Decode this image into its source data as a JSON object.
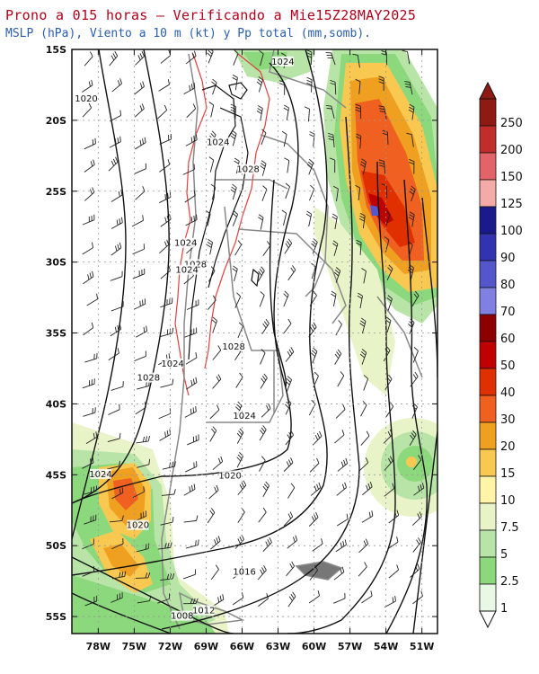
{
  "title": "Prono a 015 horas — Verificando a Mie15Z28MAY2025",
  "subtitle": "MSLP (hPa), Viento a 10 m (kt) y Pp total (mm,somb).",
  "lat_labels": [
    "15S",
    "20S",
    "25S",
    "30S",
    "35S",
    "40S",
    "45S",
    "50S",
    "55S"
  ],
  "lon_labels": [
    "78W",
    "75W",
    "72W",
    "69W",
    "66W",
    "63W",
    "60W",
    "57W",
    "54W",
    "51W"
  ],
  "isobar_labels": [
    {
      "text": "1024",
      "lon": -62.6,
      "lat": -16.0
    },
    {
      "text": "1020",
      "lon": -79.0,
      "lat": -18.6
    },
    {
      "text": "1024",
      "lon": -68.0,
      "lat": -21.7
    },
    {
      "text": "1028",
      "lon": -65.5,
      "lat": -23.6
    },
    {
      "text": "1024",
      "lon": -70.7,
      "lat": -28.8
    },
    {
      "text": "1028",
      "lon": -69.9,
      "lat": -30.3
    },
    {
      "text": "1024",
      "lon": -70.6,
      "lat": -30.7
    },
    {
      "text": "1028",
      "lon": -66.7,
      "lat": -36.1
    },
    {
      "text": "1024",
      "lon": -71.8,
      "lat": -37.3
    },
    {
      "text": "1028",
      "lon": -73.8,
      "lat": -38.3
    },
    {
      "text": "1024",
      "lon": -65.8,
      "lat": -41.0
    },
    {
      "text": "1024",
      "lon": -77.8,
      "lat": -45.1
    },
    {
      "text": "1020",
      "lon": -67.0,
      "lat": -45.2
    },
    {
      "text": "1020",
      "lon": -74.7,
      "lat": -48.7
    },
    {
      "text": "1016",
      "lon": -65.8,
      "lat": -52.0
    },
    {
      "text": "1012",
      "lon": -69.2,
      "lat": -54.7
    },
    {
      "text": "1008",
      "lon": -71.0,
      "lat": -55.1
    }
  ],
  "colorbar": {
    "labels": [
      "250",
      "200",
      "150",
      "125",
      "100",
      "90",
      "80",
      "70",
      "60",
      "50",
      "40",
      "30",
      "20",
      "15",
      "10",
      "7.5",
      "5",
      "2.5",
      "1"
    ],
    "colors": [
      "#8e1a14",
      "#c12d2a",
      "#e26468",
      "#f5aaaa",
      "#1a1a8c",
      "#3333b2",
      "#5555cc",
      "#8080e0",
      "#8c0000",
      "#c00000",
      "#e03000",
      "#f06020",
      "#f0a020",
      "#f8c850",
      "#fff4a8",
      "#e8f4c8",
      "#b8e4a8",
      "#8cd87c",
      "#e8f8e4"
    ],
    "direction": "top = heaviest"
  },
  "colors": {
    "isobar": "#111111",
    "terrain_outline": "#e04040",
    "borders": "#888888",
    "grid": "#999999"
  }
}
